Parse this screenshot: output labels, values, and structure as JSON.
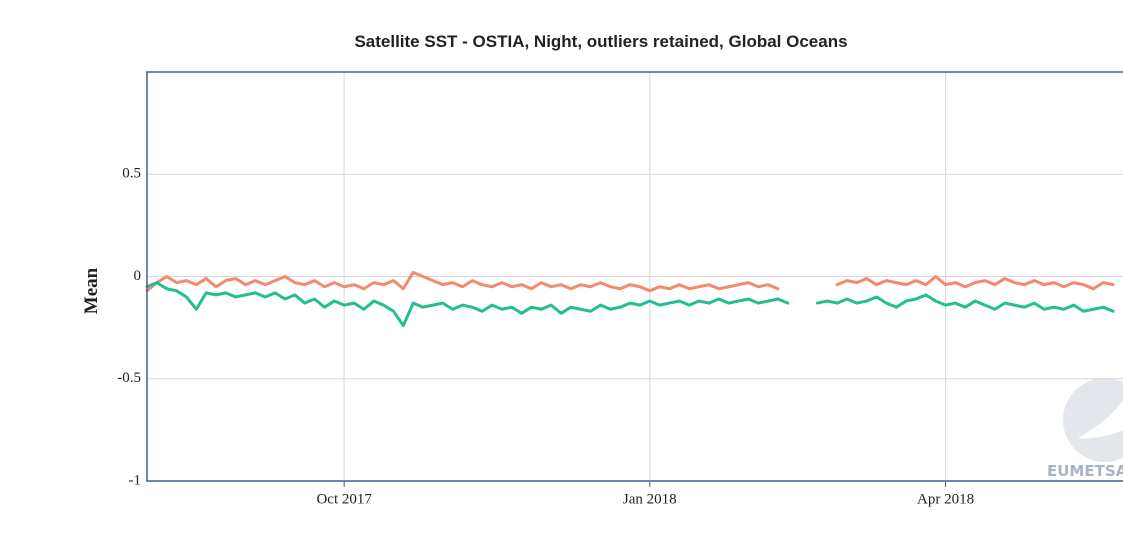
{
  "chart_data": {
    "type": "line",
    "title": "Satellite SST - OSTIA, Night, outliers retained, Global Oceans",
    "ylabel": "Mean",
    "watermark": "EUMETSAT",
    "categories": [
      null,
      null,
      null,
      null,
      null,
      null,
      null,
      null,
      null,
      null,
      null,
      null,
      null,
      null,
      null,
      null,
      null,
      null,
      null,
      null,
      "Oct 2017",
      null,
      null,
      null,
      null,
      null,
      null,
      null,
      null,
      null,
      null,
      null,
      null,
      null,
      null,
      null,
      null,
      null,
      null,
      null,
      null,
      null,
      null,
      null,
      null,
      null,
      null,
      null,
      null,
      null,
      null,
      "Jan 2018",
      null,
      null,
      null,
      null,
      null,
      null,
      null,
      null,
      null,
      null,
      null,
      null,
      null,
      null,
      null,
      null,
      null,
      null,
      null,
      null,
      null,
      null,
      null,
      null,
      null,
      null,
      null,
      null,
      null,
      "Apr 2018",
      null,
      null,
      null,
      null,
      null,
      null,
      null,
      null,
      null,
      null,
      null,
      null,
      null,
      null,
      null,
      null,
      null
    ],
    "series": [
      {
        "color": "#f4896b",
        "values": [
          -0.07,
          -0.03,
          0.0,
          -0.03,
          -0.02,
          -0.04,
          -0.01,
          -0.05,
          -0.02,
          -0.01,
          -0.04,
          -0.02,
          -0.04,
          -0.02,
          0.0,
          -0.03,
          -0.04,
          -0.02,
          -0.05,
          -0.03,
          -0.05,
          -0.04,
          -0.06,
          -0.03,
          -0.04,
          -0.02,
          -0.06,
          0.02,
          0.0,
          -0.02,
          -0.04,
          -0.03,
          -0.05,
          -0.02,
          -0.04,
          -0.05,
          -0.03,
          -0.05,
          -0.04,
          -0.06,
          -0.03,
          -0.05,
          -0.04,
          -0.06,
          -0.04,
          -0.05,
          -0.03,
          -0.05,
          -0.06,
          -0.04,
          -0.05,
          -0.07,
          -0.05,
          -0.06,
          -0.04,
          -0.06,
          -0.05,
          -0.04,
          -0.06,
          -0.05,
          -0.04,
          -0.03,
          -0.05,
          -0.04,
          -0.06,
          null,
          null,
          null,
          null,
          null,
          -0.04,
          -0.02,
          -0.03,
          -0.01,
          -0.04,
          -0.02,
          -0.03,
          -0.04,
          -0.02,
          -0.04,
          0.0,
          -0.04,
          -0.03,
          -0.05,
          -0.03,
          -0.02,
          -0.04,
          -0.01,
          -0.03,
          -0.04,
          -0.02,
          -0.04,
          -0.03,
          -0.05,
          -0.03,
          -0.04,
          -0.06,
          -0.03,
          -0.04
        ]
      },
      {
        "color": "#22bf8f",
        "values": [
          -0.05,
          -0.03,
          -0.06,
          -0.07,
          -0.1,
          -0.16,
          -0.08,
          -0.09,
          -0.08,
          -0.1,
          -0.09,
          -0.08,
          -0.1,
          -0.08,
          -0.11,
          -0.09,
          -0.13,
          -0.11,
          -0.15,
          -0.12,
          -0.14,
          -0.13,
          -0.16,
          -0.12,
          -0.14,
          -0.17,
          -0.24,
          -0.13,
          -0.15,
          -0.14,
          -0.13,
          -0.16,
          -0.14,
          -0.15,
          -0.17,
          -0.14,
          -0.16,
          -0.15,
          -0.18,
          -0.15,
          -0.16,
          -0.14,
          -0.18,
          -0.15,
          -0.16,
          -0.17,
          -0.14,
          -0.16,
          -0.15,
          -0.13,
          -0.14,
          -0.12,
          -0.14,
          -0.13,
          -0.12,
          -0.14,
          -0.12,
          -0.13,
          -0.11,
          -0.13,
          -0.12,
          -0.11,
          -0.13,
          -0.12,
          -0.11,
          -0.13,
          null,
          null,
          -0.13,
          -0.12,
          -0.13,
          -0.11,
          -0.13,
          -0.12,
          -0.1,
          -0.13,
          -0.15,
          -0.12,
          -0.11,
          -0.09,
          -0.12,
          -0.14,
          -0.13,
          -0.15,
          -0.12,
          -0.14,
          -0.16,
          -0.13,
          -0.14,
          -0.15,
          -0.13,
          -0.16,
          -0.15,
          -0.16,
          -0.14,
          -0.17,
          -0.16,
          -0.15,
          -0.17
        ]
      }
    ],
    "ylim": [
      -1,
      1
    ],
    "yticks": [
      -1,
      -0.5,
      0,
      0.5
    ],
    "grid": true,
    "frame_color": "#3f5f9e"
  }
}
